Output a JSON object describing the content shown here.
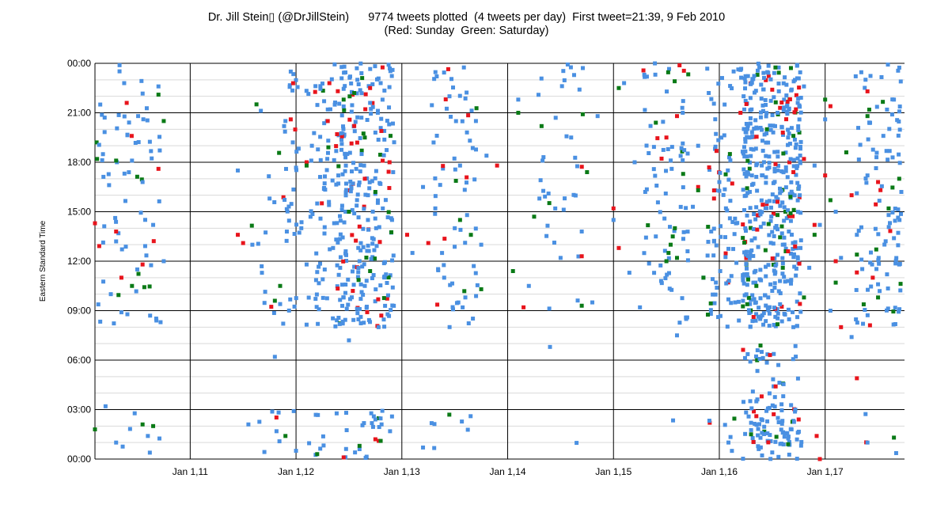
{
  "title": {
    "line1": "Dr. Jill Stein▯ (@DrJillStein)      9774 tweets plotted  (4 tweets per day)  First tweet=21:39, 9 Feb 2010",
    "line2": "(Red: Sunday  Green: Saturday)"
  },
  "colors": {
    "weekday": "#4a90e2",
    "sunday": "#e8141c",
    "saturday": "#0a7a16",
    "major_grid": "#000000",
    "minor_grid": "#d9d9d9"
  },
  "chart_data": {
    "type": "scatter",
    "ylabel": "Eastern Standard Time",
    "xlabel": "",
    "y_ticks": [
      "00:00",
      "03:00",
      "06:00",
      "09:00",
      "12:00",
      "15:00",
      "18:00",
      "21:00",
      "00:00"
    ],
    "x_ticks": [
      "Jan 1,11",
      "Jan 1,12",
      "Jan 1,13",
      "Jan 1,14",
      "Jan 1,15",
      "Jan 1,16",
      "Jan 1,17"
    ],
    "x_range": [
      2010.1,
      2017.75
    ],
    "ylim": [
      0,
      24
    ],
    "grid": true,
    "legend": "in title (Red: Sunday, Green: Saturday)",
    "total_tweets": 9774,
    "density_by_year_hour": [
      {
        "year": 2010.1,
        "weight": 2
      },
      {
        "year": 2010.5,
        "weight": 3
      },
      {
        "year": 2011.8,
        "weight": 2
      },
      {
        "year": 2012.1,
        "weight": 3
      },
      {
        "year": 2012.4,
        "weight": 5
      },
      {
        "year": 2012.65,
        "weight": 14
      },
      {
        "year": 2013.5,
        "weight": 4
      },
      {
        "year": 2014.5,
        "weight": 2
      },
      {
        "year": 2015.5,
        "weight": 4
      },
      {
        "year": 2016.1,
        "weight": 6
      },
      {
        "year": 2016.5,
        "weight": 30
      },
      {
        "year": 2017.5,
        "weight": 6
      }
    ],
    "series": [
      {
        "name": "Weekday",
        "points": [
          [
            2010.15,
            21.5
          ],
          [
            2010.25,
            10.0
          ],
          [
            2010.3,
            13.2
          ],
          [
            2010.35,
            8.9
          ],
          [
            2010.45,
            18.1
          ],
          [
            2010.5,
            11.5
          ],
          [
            2010.55,
            16.8
          ],
          [
            2010.65,
            14.2
          ],
          [
            2010.7,
            22.6
          ],
          [
            2010.75,
            12.0
          ],
          [
            2010.72,
            8.3
          ],
          [
            2010.2,
            3.2
          ],
          [
            2010.3,
            1.0
          ],
          [
            2010.6,
            1.4
          ],
          [
            2011.45,
            17.5
          ],
          [
            2011.55,
            2.1
          ],
          [
            2011.75,
            15.8
          ],
          [
            2011.8,
            6.2
          ],
          [
            2011.85,
            9.4
          ],
          [
            2011.9,
            20.5
          ],
          [
            2011.95,
            23.5
          ],
          [
            2012.0,
            0.5
          ],
          [
            2012.05,
            14.0
          ],
          [
            2012.1,
            11.8
          ],
          [
            2012.15,
            19.0
          ],
          [
            2012.2,
            15.5
          ],
          [
            2012.3,
            21.2
          ],
          [
            2012.35,
            12.8
          ],
          [
            2012.4,
            17.2
          ],
          [
            2012.45,
            9.8
          ],
          [
            2012.5,
            7.2
          ],
          [
            2012.55,
            14.9
          ],
          [
            2012.58,
            23.0
          ],
          [
            2012.6,
            12.0
          ],
          [
            2012.62,
            18.5
          ],
          [
            2012.65,
            10.5
          ],
          [
            2012.68,
            16.0
          ],
          [
            2012.7,
            21.6
          ],
          [
            2012.72,
            13.4
          ],
          [
            2012.75,
            19.8
          ],
          [
            2012.78,
            8.0
          ],
          [
            2012.8,
            22.8
          ],
          [
            2012.82,
            15.2
          ],
          [
            2012.85,
            11.2
          ],
          [
            2012.88,
            20.3
          ],
          [
            2012.75,
            2.4
          ],
          [
            2012.6,
            0.6
          ],
          [
            2013.1,
            12.5
          ],
          [
            2013.2,
            16.5
          ],
          [
            2013.3,
            19.2
          ],
          [
            2013.4,
            11.0
          ],
          [
            2013.45,
            22.0
          ],
          [
            2013.5,
            14.0
          ],
          [
            2013.55,
            17.8
          ],
          [
            2013.6,
            9.8
          ],
          [
            2013.7,
            20.5
          ],
          [
            2013.75,
            13.0
          ],
          [
            2013.8,
            18.4
          ],
          [
            2013.65,
            2.6
          ],
          [
            2013.2,
            0.7
          ],
          [
            2014.1,
            21.8
          ],
          [
            2014.2,
            10.5
          ],
          [
            2014.3,
            15.8
          ],
          [
            2014.4,
            6.8
          ],
          [
            2014.5,
            12.2
          ],
          [
            2014.6,
            19.5
          ],
          [
            2014.7,
            13.8
          ],
          [
            2014.8,
            9.5
          ],
          [
            2014.85,
            20.8
          ],
          [
            2015.0,
            14.5
          ],
          [
            2015.1,
            22.8
          ],
          [
            2015.15,
            11.3
          ],
          [
            2015.2,
            18.0
          ],
          [
            2015.25,
            9.2
          ],
          [
            2015.3,
            16.2
          ],
          [
            2015.35,
            20.2
          ],
          [
            2015.4,
            13.5
          ],
          [
            2015.45,
            10.8
          ],
          [
            2015.55,
            17.6
          ],
          [
            2015.6,
            7.5
          ],
          [
            2015.65,
            21.3
          ],
          [
            2015.7,
            12.6
          ],
          [
            2015.75,
            15.3
          ],
          [
            2015.8,
            19.0
          ],
          [
            2015.85,
            11.0
          ],
          [
            2015.9,
            22.2
          ],
          [
            2015.95,
            13.2
          ],
          [
            2016.0,
            16.8
          ],
          [
            2016.05,
            21.5
          ],
          [
            2016.1,
            14.6
          ],
          [
            2016.15,
            9.5
          ],
          [
            2016.2,
            23.6
          ],
          [
            2016.25,
            12.4
          ],
          [
            2016.3,
            18.8
          ],
          [
            2016.35,
            3.5
          ],
          [
            2016.4,
            6.5
          ],
          [
            2016.45,
            15.6
          ],
          [
            2016.5,
            10.2
          ],
          [
            2016.55,
            21.0
          ],
          [
            2016.6,
            13.0
          ],
          [
            2016.65,
            19.5
          ],
          [
            2016.7,
            8.0
          ],
          [
            2016.75,
            16.4
          ],
          [
            2016.8,
            22.6
          ],
          [
            2016.85,
            11.6
          ],
          [
            2016.9,
            17.8
          ],
          [
            2016.95,
            14.2
          ],
          [
            2017.0,
            20.6
          ],
          [
            2017.05,
            9.0
          ],
          [
            2017.1,
            15.0
          ],
          [
            2017.15,
            12.2
          ],
          [
            2017.2,
            18.6
          ],
          [
            2017.25,
            7.4
          ],
          [
            2017.3,
            13.6
          ],
          [
            2017.4,
            17.2
          ],
          [
            2017.5,
            10.6
          ],
          [
            2017.55,
            19.6
          ],
          [
            2017.6,
            14.8
          ],
          [
            2017.65,
            21.8
          ],
          [
            2017.7,
            11.8
          ],
          [
            2017.72,
            16.2
          ],
          [
            2017.4,
            1.0
          ],
          [
            2016.5,
            0.4
          ],
          [
            2016.6,
            1.6
          ],
          [
            2016.3,
            2.2
          ]
        ]
      },
      {
        "name": "Sunday",
        "points": [
          [
            2010.1,
            14.3
          ],
          [
            2010.3,
            13.8
          ],
          [
            2010.35,
            11.0
          ],
          [
            2010.4,
            21.6
          ],
          [
            2010.55,
            11.8
          ],
          [
            2010.7,
            17.6
          ],
          [
            2011.45,
            13.6
          ],
          [
            2011.5,
            13.1
          ],
          [
            2011.95,
            20.6
          ],
          [
            2012.1,
            18.0
          ],
          [
            2012.3,
            20.5
          ],
          [
            2012.45,
            0.1
          ],
          [
            2012.55,
            20.2
          ],
          [
            2012.6,
            14.1
          ],
          [
            2012.65,
            17.0
          ],
          [
            2012.7,
            22.5
          ],
          [
            2012.75,
            1.2
          ],
          [
            2013.05,
            13.6
          ],
          [
            2013.25,
            13.1
          ],
          [
            2013.9,
            17.8
          ],
          [
            2014.15,
            9.2
          ],
          [
            2014.7,
            12.3
          ],
          [
            2015.0,
            15.2
          ],
          [
            2015.05,
            12.8
          ],
          [
            2015.5,
            19.5
          ],
          [
            2015.6,
            20.8
          ],
          [
            2015.8,
            16.5
          ],
          [
            2015.95,
            15.8
          ],
          [
            2016.2,
            21.0
          ],
          [
            2016.35,
            2.6
          ],
          [
            2016.4,
            3.8
          ],
          [
            2016.5,
            22.4
          ],
          [
            2016.55,
            15.6
          ],
          [
            2016.6,
            19.8
          ],
          [
            2016.65,
            12.6
          ],
          [
            2016.7,
            17.4
          ],
          [
            2016.75,
            2.4
          ],
          [
            2016.8,
            18.2
          ],
          [
            2016.9,
            14.2
          ],
          [
            2016.92,
            1.4
          ],
          [
            2016.95,
            0.0
          ],
          [
            2017.0,
            17.2
          ],
          [
            2017.05,
            21.4
          ],
          [
            2017.1,
            12.0
          ],
          [
            2017.15,
            8.0
          ],
          [
            2017.25,
            16.0
          ],
          [
            2017.3,
            4.9
          ],
          [
            2017.4,
            22.3
          ],
          [
            2017.45,
            11.0
          ],
          [
            2017.5,
            16.8
          ]
        ]
      },
      {
        "name": "Saturday",
        "points": [
          [
            2010.1,
            1.8
          ],
          [
            2010.12,
            18.2
          ],
          [
            2010.3,
            18.1
          ],
          [
            2010.45,
            10.5
          ],
          [
            2010.55,
            2.1
          ],
          [
            2010.65,
            2.0
          ],
          [
            2010.7,
            22.1
          ],
          [
            2010.75,
            20.5
          ],
          [
            2011.8,
            9.6
          ],
          [
            2011.85,
            10.5
          ],
          [
            2011.9,
            1.4
          ],
          [
            2012.1,
            17.8
          ],
          [
            2012.2,
            0.3
          ],
          [
            2012.45,
            21.8
          ],
          [
            2012.5,
            15.0
          ],
          [
            2012.55,
            22.2
          ],
          [
            2012.6,
            0.8
          ],
          [
            2012.65,
            19.5
          ],
          [
            2012.7,
            11.4
          ],
          [
            2012.75,
            16.2
          ],
          [
            2012.8,
            1.1
          ],
          [
            2013.55,
            14.5
          ],
          [
            2013.75,
            10.3
          ],
          [
            2014.05,
            11.4
          ],
          [
            2014.1,
            21.0
          ],
          [
            2014.25,
            14.7
          ],
          [
            2014.7,
            9.3
          ],
          [
            2014.75,
            17.4
          ],
          [
            2015.05,
            22.5
          ],
          [
            2015.4,
            20.4
          ],
          [
            2015.5,
            12.0
          ],
          [
            2015.52,
            12.5
          ],
          [
            2015.54,
            13.0
          ],
          [
            2015.56,
            13.5
          ],
          [
            2015.58,
            14.0
          ],
          [
            2015.6,
            12.2
          ],
          [
            2015.8,
            16.3
          ],
          [
            2015.85,
            11.0
          ],
          [
            2016.1,
            18.5
          ],
          [
            2016.3,
            1.5
          ],
          [
            2016.35,
            10.5
          ],
          [
            2016.45,
            20.0
          ],
          [
            2016.55,
            14.8
          ],
          [
            2016.6,
            11.6
          ],
          [
            2016.65,
            0.9
          ],
          [
            2016.7,
            19.6
          ],
          [
            2016.8,
            9.8
          ],
          [
            2016.9,
            13.6
          ],
          [
            2017.0,
            21.8
          ],
          [
            2017.05,
            15.7
          ],
          [
            2017.1,
            10.7
          ],
          [
            2017.2,
            18.6
          ],
          [
            2017.3,
            12.4
          ],
          [
            2017.4,
            20.8
          ],
          [
            2017.5,
            9.8
          ],
          [
            2017.6,
            15.2
          ],
          [
            2017.65,
            1.3
          ],
          [
            2017.7,
            17.0
          ]
        ]
      }
    ]
  }
}
